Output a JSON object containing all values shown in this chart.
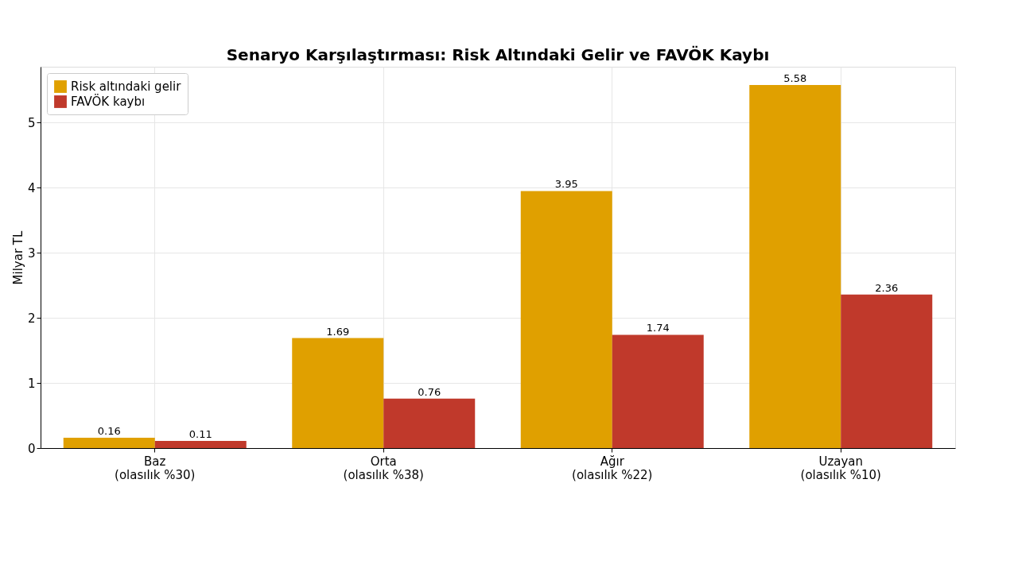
{
  "chart_data": {
    "type": "bar",
    "title": "Senaryo Karşılaştırması: Risk Altındaki Gelir ve FAVÖK Kaybı",
    "ylabel": "Milyar TL",
    "categories": [
      "Baz\n(olasılık %30)",
      "Orta\n(olasılık %38)",
      "Ağır\n(olasılık %22)",
      "Uzayan\n(olasılık %10)"
    ],
    "series": [
      {
        "name": "Risk altındaki gelir",
        "color": "#e0a000",
        "values": [
          0.16,
          1.69,
          3.95,
          5.58
        ]
      },
      {
        "name": "FAVÖK kaybı",
        "color": "#c0392b",
        "values": [
          0.11,
          0.76,
          1.74,
          2.36
        ]
      }
    ],
    "ylim": [
      0,
      5.86
    ],
    "yticks": [
      0,
      1,
      2,
      3,
      4,
      5
    ],
    "grid": true,
    "legend": "top left",
    "data_labels": true
  }
}
